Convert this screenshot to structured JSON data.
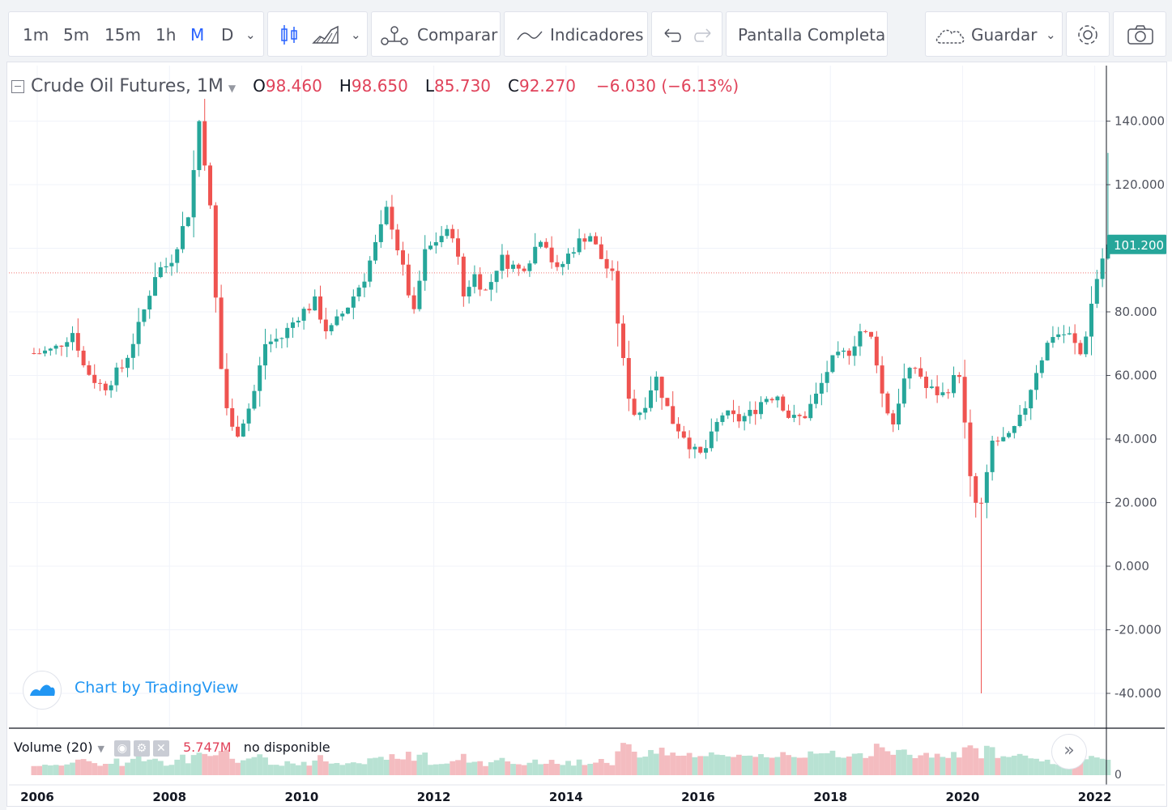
{
  "toolbar": {
    "intervals": [
      "1m",
      "5m",
      "15m",
      "1h",
      "M",
      "D"
    ],
    "active_interval": "M",
    "compare_label": "Comparar",
    "indicators_label": "Indicadores",
    "fullscreen_label": "Pantalla Completa",
    "save_label": "Guardar",
    "icons": [
      "candles-icon",
      "area-chart-icon",
      "compare-icon",
      "indicators-icon",
      "undo-icon",
      "redo-icon",
      "cloud-icon",
      "settings-icon",
      "camera-icon"
    ]
  },
  "legend": {
    "symbol": "Crude Oil Futures, 1M",
    "o_label": "O",
    "o_value": "98.460",
    "h_label": "H",
    "h_value": "98.650",
    "l_label": "L",
    "l_value": "85.730",
    "c_label": "C",
    "c_value": "92.270",
    "change": "−6.030 (−6.13%)"
  },
  "watermark": {
    "text": "Chart by TradingView"
  },
  "volume": {
    "label": "Volume (20)",
    "value": "5.747M",
    "status": "no disponible",
    "axis_label": "0"
  },
  "price_tag": "101.200",
  "colors": {
    "up": "#26a69a",
    "down": "#ef5350",
    "up_volume": "#b8e2d3",
    "down_volume": "#f4bcc0",
    "accent": "#2962ff",
    "link": "#2196f3"
  },
  "chart_data": {
    "type": "candlestick",
    "title": "Crude Oil Futures, 1M",
    "y_ticks": [
      140,
      120,
      100,
      80,
      60,
      40,
      20,
      0,
      -20,
      -40
    ],
    "y_tick_labels": [
      "140.000",
      "120.000",
      "100.000",
      "80.000",
      "60.000",
      "40.000",
      "20.000",
      "0.000",
      "-20.000",
      "-40.000"
    ],
    "ylim": [
      -40,
      150
    ],
    "x_ticks": [
      "2006",
      "2008",
      "2010",
      "2012",
      "2014",
      "2016",
      "2018",
      "2020",
      "2022"
    ],
    "xlim": [
      2005.95,
      2022.2
    ],
    "last_price": 101.2,
    "reference_line": 92.27,
    "grid": true,
    "monthly_close_anchors": [
      [
        2006.0,
        67
      ],
      [
        2006.25,
        68
      ],
      [
        2006.55,
        74
      ],
      [
        2006.7,
        63
      ],
      [
        2006.85,
        59
      ],
      [
        2007.0,
        56
      ],
      [
        2007.3,
        63
      ],
      [
        2007.55,
        76
      ],
      [
        2007.8,
        93
      ],
      [
        2008.0,
        95
      ],
      [
        2008.3,
        112
      ],
      [
        2008.45,
        140
      ],
      [
        2008.6,
        118
      ],
      [
        2008.75,
        67
      ],
      [
        2008.9,
        45
      ],
      [
        2009.0,
        41
      ],
      [
        2009.25,
        52
      ],
      [
        2009.45,
        70
      ],
      [
        2009.7,
        72
      ],
      [
        2009.95,
        79
      ],
      [
        2010.2,
        83
      ],
      [
        2010.4,
        73
      ],
      [
        2010.7,
        82
      ],
      [
        2010.95,
        91
      ],
      [
        2011.2,
        106
      ],
      [
        2011.3,
        113
      ],
      [
        2011.5,
        96
      ],
      [
        2011.7,
        79
      ],
      [
        2011.85,
        98
      ],
      [
        2012.1,
        104
      ],
      [
        2012.3,
        105
      ],
      [
        2012.45,
        85
      ],
      [
        2012.6,
        92
      ],
      [
        2012.8,
        86
      ],
      [
        2013.0,
        97
      ],
      [
        2013.3,
        93
      ],
      [
        2013.45,
        97
      ],
      [
        2013.65,
        105
      ],
      [
        2013.85,
        92
      ],
      [
        2014.1,
        100
      ],
      [
        2014.35,
        105
      ],
      [
        2014.5,
        98
      ],
      [
        2014.7,
        91
      ],
      [
        2014.85,
        66
      ],
      [
        2015.0,
        48
      ],
      [
        2015.15,
        49
      ],
      [
        2015.35,
        60
      ],
      [
        2015.6,
        46
      ],
      [
        2015.8,
        41
      ],
      [
        2016.0,
        34
      ],
      [
        2016.15,
        38
      ],
      [
        2016.35,
        48
      ],
      [
        2016.6,
        46
      ],
      [
        2016.8,
        48
      ],
      [
        2017.0,
        53
      ],
      [
        2017.2,
        54
      ],
      [
        2017.4,
        46
      ],
      [
        2017.6,
        47
      ],
      [
        2017.8,
        54
      ],
      [
        2018.0,
        64
      ],
      [
        2018.3,
        68
      ],
      [
        2018.45,
        74
      ],
      [
        2018.65,
        71
      ],
      [
        2018.8,
        52
      ],
      [
        2018.95,
        45
      ],
      [
        2019.1,
        58
      ],
      [
        2019.3,
        63
      ],
      [
        2019.45,
        56
      ],
      [
        2019.7,
        54
      ],
      [
        2019.95,
        61
      ],
      [
        2020.0,
        51
      ],
      [
        2020.15,
        20
      ],
      [
        2020.3,
        19
      ],
      [
        2020.45,
        39
      ],
      [
        2020.7,
        40
      ],
      [
        2020.9,
        47
      ],
      [
        2021.1,
        61
      ],
      [
        2021.35,
        73
      ],
      [
        2021.6,
        73
      ],
      [
        2021.8,
        66
      ],
      [
        2022.0,
        88
      ],
      [
        2022.1,
        96
      ],
      [
        2022.2,
        101.2
      ]
    ]
  }
}
